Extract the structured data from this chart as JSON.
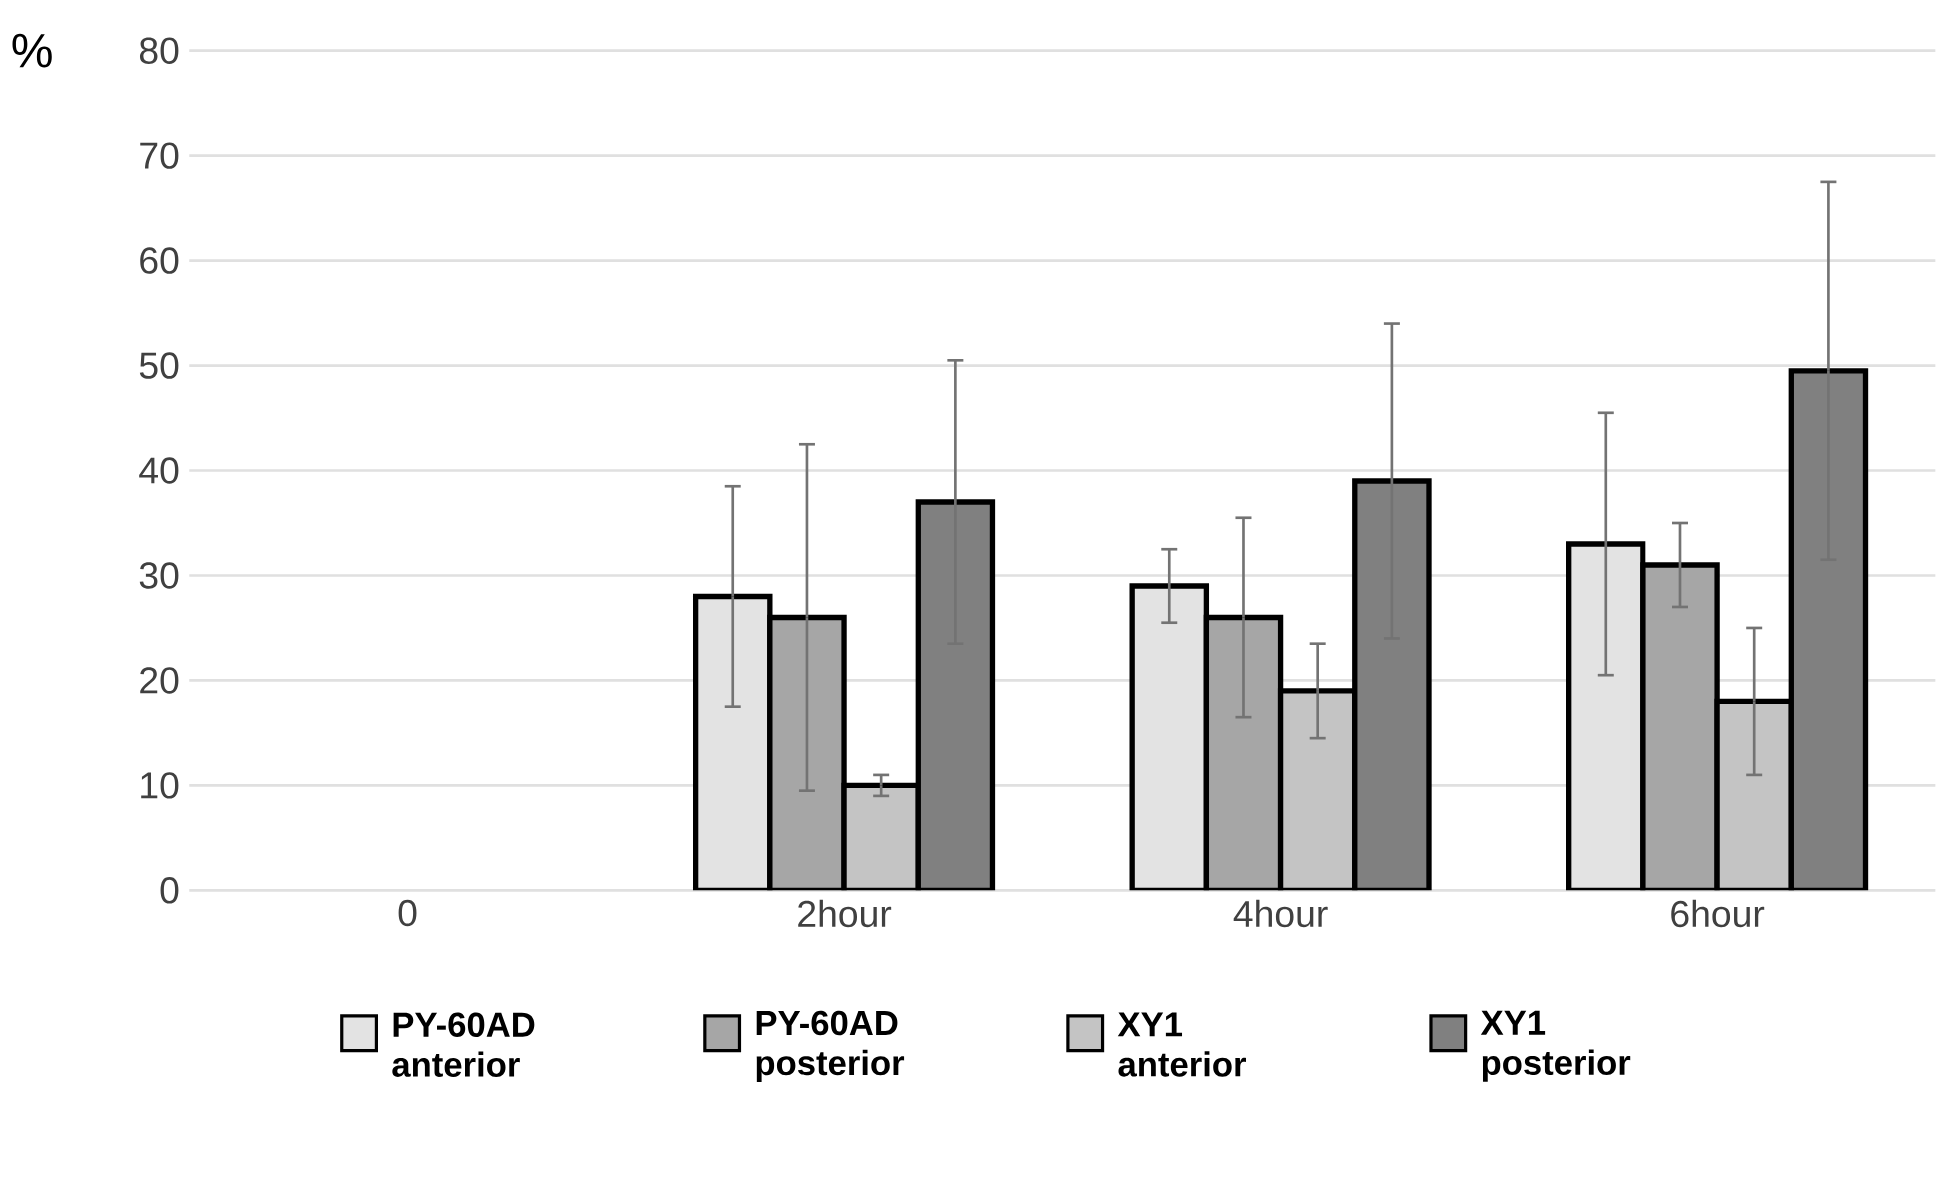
{
  "chart_data": {
    "type": "bar",
    "ylabel": "%",
    "categories": [
      "0",
      "2hour",
      "4hour",
      "6hour"
    ],
    "series": [
      {
        "name": "PY-60AD anterior",
        "color": "#e3e3e3",
        "values": [
          null,
          28,
          29,
          33
        ],
        "errors": [
          null,
          10.5,
          3.5,
          12.5
        ]
      },
      {
        "name": "PY-60AD posterior",
        "color": "#a6a6a6",
        "values": [
          null,
          26,
          26,
          31
        ],
        "errors": [
          null,
          16.5,
          9.5,
          4
        ]
      },
      {
        "name": "XY1 anterior",
        "color": "#c4c4c4",
        "values": [
          null,
          10,
          19,
          18
        ],
        "errors": [
          null,
          1,
          4.5,
          7
        ]
      },
      {
        "name": "XY1 posterior",
        "color": "#808080",
        "values": [
          null,
          37,
          39,
          49.5
        ],
        "errors": [
          null,
          13.5,
          15,
          18
        ]
      }
    ],
    "ylim": [
      0,
      80
    ],
    "yticks": [
      0,
      10,
      20,
      30,
      40,
      50,
      60,
      70,
      80
    ],
    "grid": "y",
    "legend": "bottom"
  }
}
